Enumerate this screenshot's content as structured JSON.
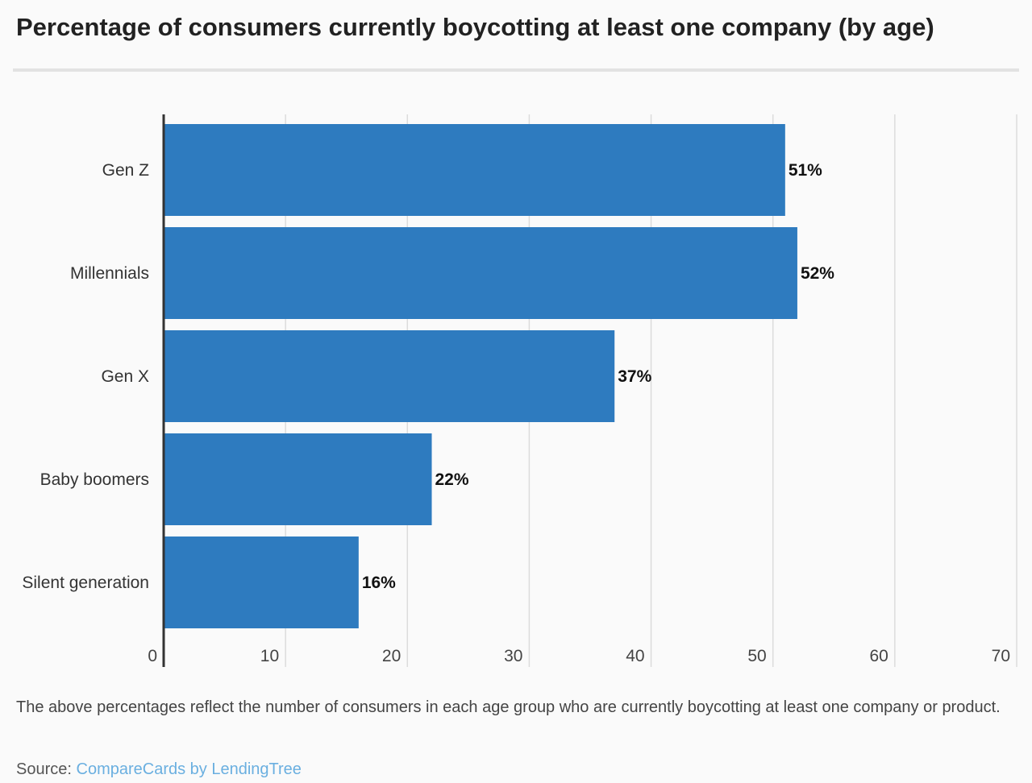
{
  "chart_data": {
    "type": "bar",
    "orientation": "horizontal",
    "title": "Percentage of consumers currently boycotting at least one company (by age)",
    "categories": [
      "Gen Z",
      "Millennials",
      "Gen X",
      "Baby boomers",
      "Silent generation"
    ],
    "values": [
      51,
      52,
      37,
      22,
      16
    ],
    "data_labels": [
      "51%",
      "52%",
      "37%",
      "22%",
      "16%"
    ],
    "xlim": [
      0,
      70
    ],
    "xticks": [
      0,
      10,
      20,
      30,
      40,
      50,
      60,
      70
    ],
    "grid": true,
    "bar_color": "#2e7bbf"
  },
  "note": "The above percentages reflect the number of consumers in each age group who are currently boycotting at least one company or product.",
  "source": {
    "label": "Source:",
    "link_text": "CompareCards by LendingTree",
    "link_color": "#6aafe0"
  }
}
